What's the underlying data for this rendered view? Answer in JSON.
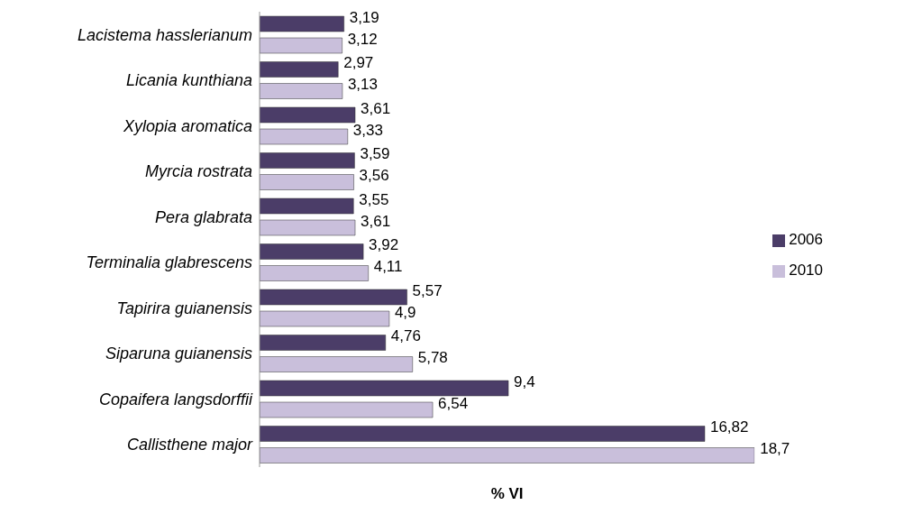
{
  "chart_data": {
    "type": "bar",
    "orientation": "horizontal",
    "xlabel": "% VI",
    "categories": [
      "Lacistema hasslerianum",
      "Licania kunthiana",
      "Xylopia aromatica",
      "Myrcia rostrata",
      "Pera glabrata",
      "Terminalia glabrescens",
      "Tapirira guianensis",
      "Siparuna guianensis",
      "Copaifera langsdorffii",
      "Callisthene major"
    ],
    "series": [
      {
        "name": "2006",
        "color": "#4b3d68",
        "values": [
          3.19,
          2.97,
          3.61,
          3.59,
          3.55,
          3.92,
          5.57,
          4.76,
          9.4,
          16.82
        ],
        "value_labels": [
          "3,19",
          "2,97",
          "3,61",
          "3,59",
          "3,55",
          "3,92",
          "5,57",
          "4,76",
          "9,4",
          "16,82"
        ]
      },
      {
        "name": "2010",
        "color": "#c9bfdb",
        "values": [
          3.12,
          3.13,
          3.33,
          3.56,
          3.61,
          4.11,
          4.9,
          5.78,
          6.54,
          18.7
        ],
        "value_labels": [
          "3,12",
          "3,13",
          "3,33",
          "3,56",
          "3,61",
          "4,11",
          "4,9",
          "5,78",
          "6,54",
          "18,7"
        ]
      }
    ],
    "tick_labels": "y",
    "grid": false,
    "legend": "right"
  }
}
